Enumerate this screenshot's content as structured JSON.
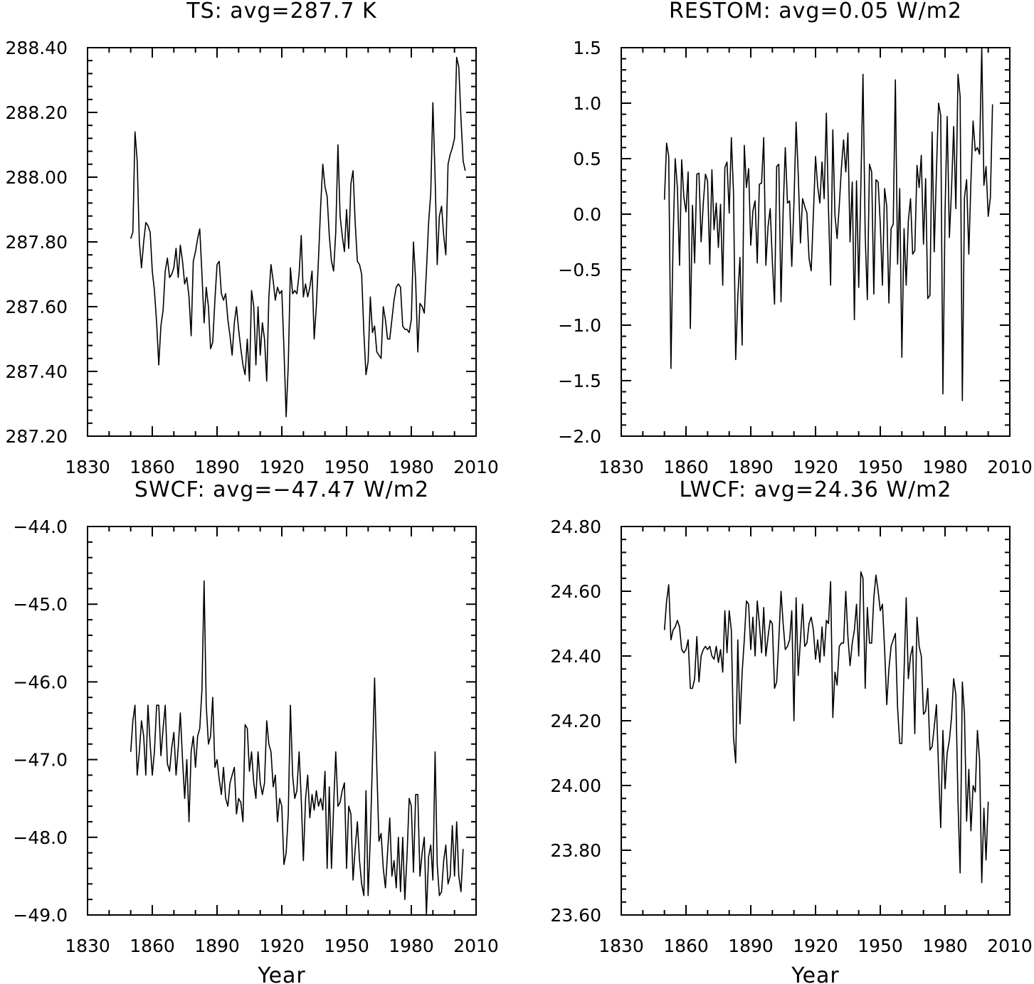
{
  "chart_data": [
    {
      "type": "line",
      "title": "TS: avg=287.7 K",
      "xlabel": "",
      "ylabel": "",
      "xlim": [
        1830,
        2010
      ],
      "ylim": [
        287.2,
        288.4
      ],
      "xticks": [
        "1830",
        "1860",
        "1890",
        "1920",
        "1950",
        "1980",
        "2010"
      ],
      "yticks": [
        "287.20",
        "287.40",
        "287.60",
        "287.80",
        "288.00",
        "288.20",
        "288.40"
      ],
      "grid": false,
      "x_start": 1850,
      "series": [
        {
          "values": [
            287.81,
            287.83,
            288.14,
            288.05,
            287.8,
            287.72,
            287.8,
            287.86,
            287.85,
            287.83,
            287.71,
            287.65,
            287.55,
            287.42,
            287.54,
            287.59,
            287.71,
            287.75,
            287.69,
            287.7,
            287.72,
            287.78,
            287.69,
            287.79,
            287.74,
            287.67,
            287.69,
            287.63,
            287.51,
            287.74,
            287.77,
            287.81,
            287.84,
            287.7,
            287.55,
            287.66,
            287.6,
            287.47,
            287.49,
            287.62,
            287.73,
            287.74,
            287.64,
            287.62,
            287.64,
            287.56,
            287.51,
            287.45,
            287.55,
            287.6,
            287.53,
            287.47,
            287.42,
            287.39,
            287.5,
            287.37,
            287.65,
            287.6,
            287.42,
            287.6,
            287.45,
            287.55,
            287.5,
            287.37,
            287.63,
            287.73,
            287.68,
            287.62,
            287.66,
            287.64,
            287.65,
            287.47,
            287.26,
            287.42,
            287.72,
            287.64,
            287.65,
            287.64,
            287.7,
            287.82,
            287.63,
            287.67,
            287.63,
            287.66,
            287.71,
            287.5,
            287.6,
            287.75,
            287.91,
            288.04,
            287.97,
            287.94,
            287.82,
            287.74,
            287.71,
            287.83,
            288.1,
            287.88,
            287.82,
            287.77,
            287.9,
            287.78,
            287.98,
            288.02,
            287.86,
            287.74,
            287.73,
            287.7,
            287.52,
            287.39,
            287.43,
            287.63,
            287.52,
            287.54,
            287.46,
            287.45,
            287.44,
            287.6,
            287.56,
            287.5,
            287.5,
            287.56,
            287.62,
            287.66,
            287.67,
            287.66,
            287.54,
            287.53,
            287.53,
            287.52,
            287.56,
            287.8,
            287.68,
            287.46,
            287.61,
            287.6,
            287.58,
            287.71,
            287.86,
            287.95,
            288.23,
            288.0,
            287.73,
            287.88,
            287.91,
            287.82,
            287.76,
            288.04,
            288.07,
            288.09,
            288.12,
            288.37,
            288.34,
            288.18,
            288.05,
            288.02
          ]
        }
      ]
    },
    {
      "type": "line",
      "title": "RESTOM: avg=0.05 W/m2",
      "xlabel": "",
      "ylabel": "",
      "xlim": [
        1830,
        2010
      ],
      "ylim": [
        -2.0,
        1.5
      ],
      "xticks": [
        "1830",
        "1860",
        "1890",
        "1920",
        "1950",
        "1980",
        "2010"
      ],
      "yticks": [
        "−2.0",
        "−1.5",
        "−1.0",
        "−0.5",
        "0.0",
        "0.5",
        "1.0",
        "1.5"
      ],
      "grid": false,
      "x_start": 1850,
      "series": [
        {
          "values": [
            0.13,
            0.64,
            0.52,
            -1.39,
            -0.25,
            0.5,
            0.24,
            -0.46,
            0.49,
            0.15,
            0.02,
            0.38,
            -1.03,
            0.08,
            -0.44,
            0.36,
            0.37,
            -0.25,
            0.1,
            0.36,
            0.3,
            -0.45,
            0.4,
            -0.14,
            0.1,
            -0.3,
            0.09,
            -0.64,
            0.42,
            0.47,
            0.01,
            0.69,
            0.2,
            -1.31,
            -0.74,
            -0.39,
            -1.18,
            0.62,
            0.24,
            0.41,
            -0.28,
            0.03,
            0.12,
            -0.44,
            0.27,
            0.28,
            0.69,
            -0.46,
            -0.11,
            0.05,
            -0.42,
            -0.81,
            0.43,
            0.45,
            -0.79,
            0.03,
            0.6,
            0.1,
            0.12,
            -0.47,
            0.1,
            0.83,
            0.36,
            -0.26,
            0.14,
            0.07,
            0.01,
            -0.4,
            -0.51,
            0.0,
            0.52,
            0.25,
            0.1,
            0.47,
            0.14,
            0.91,
            0.05,
            -0.64,
            0.76,
            -0.01,
            -0.22,
            0.08,
            0.42,
            0.67,
            0.38,
            0.73,
            -0.25,
            0.29,
            -0.95,
            0.3,
            -0.66,
            0.25,
            1.26,
            -0.19,
            -0.77,
            0.45,
            0.38,
            -0.72,
            0.31,
            0.29,
            -0.09,
            -0.64,
            0.23,
            0.07,
            -0.8,
            -0.13,
            -0.09,
            1.21,
            -0.45,
            0.23,
            -1.29,
            -0.13,
            -0.64,
            -0.06,
            0.14,
            -0.36,
            -0.33,
            0.44,
            0.24,
            0.53,
            -0.27,
            0.32,
            -0.76,
            -0.73,
            0.74,
            -0.34,
            0.39,
            1.0,
            0.89,
            -1.62,
            0.02,
            0.88,
            -0.21,
            0.22,
            0.79,
            0.05,
            1.26,
            1.06,
            -1.68,
            0.15,
            0.31,
            -0.36,
            0.3,
            0.84,
            0.57,
            0.6,
            0.54,
            1.5,
            0.26,
            0.43,
            -0.02,
            0.15,
            0.99
          ]
        }
      ]
    },
    {
      "type": "line",
      "title": "SWCF: avg=−47.47 W/m2",
      "xlabel": "Year",
      "ylabel": "",
      "xlim": [
        1830,
        2010
      ],
      "ylim": [
        -49.0,
        -44.0
      ],
      "xticks": [
        "1830",
        "1860",
        "1890",
        "1920",
        "1950",
        "1980",
        "2010"
      ],
      "yticks": [
        "−49.0",
        "−48.0",
        "−47.0",
        "−46.0",
        "−45.0",
        "−44.0"
      ],
      "grid": false,
      "x_start": 1850,
      "series": [
        {
          "values": [
            -46.9,
            -46.5,
            -46.3,
            -47.2,
            -46.9,
            -46.5,
            -46.7,
            -47.2,
            -46.3,
            -46.8,
            -47.2,
            -46.9,
            -46.3,
            -46.3,
            -46.95,
            -46.6,
            -46.3,
            -47.05,
            -47.15,
            -46.85,
            -46.65,
            -47.2,
            -46.85,
            -46.4,
            -47.0,
            -47.5,
            -47.0,
            -47.8,
            -46.9,
            -46.7,
            -47.1,
            -46.7,
            -46.6,
            -46.1,
            -44.7,
            -46.3,
            -46.8,
            -46.7,
            -46.2,
            -47.1,
            -47.0,
            -47.25,
            -47.45,
            -47.1,
            -47.5,
            -47.6,
            -47.3,
            -47.2,
            -47.1,
            -47.7,
            -47.5,
            -47.55,
            -47.8,
            -46.55,
            -46.6,
            -47.15,
            -46.9,
            -47.3,
            -47.5,
            -46.9,
            -47.3,
            -47.45,
            -47.3,
            -46.5,
            -46.8,
            -46.9,
            -47.35,
            -47.2,
            -47.8,
            -47.5,
            -47.6,
            -48.35,
            -48.2,
            -47.7,
            -46.3,
            -47.2,
            -47.5,
            -47.4,
            -46.9,
            -47.5,
            -48.3,
            -47.5,
            -47.2,
            -47.75,
            -47.45,
            -47.65,
            -47.4,
            -47.6,
            -47.5,
            -47.65,
            -47.15,
            -48.4,
            -47.35,
            -48.4,
            -47.6,
            -46.9,
            -47.6,
            -47.55,
            -47.4,
            -47.3,
            -48.4,
            -47.6,
            -47.7,
            -48.55,
            -48.15,
            -47.8,
            -48.3,
            -48.6,
            -48.75,
            -47.4,
            -48.75,
            -48.0,
            -47.0,
            -45.95,
            -47.1,
            -48.05,
            -47.95,
            -48.4,
            -48.65,
            -48.2,
            -47.75,
            -48.5,
            -48.3,
            -48.65,
            -48.0,
            -48.7,
            -48.0,
            -48.8,
            -48.25,
            -47.5,
            -47.6,
            -48.45,
            -47.45,
            -47.45,
            -48.5,
            -48.2,
            -48.0,
            -49.0,
            -48.25,
            -48.1,
            -48.55,
            -46.9,
            -48.35,
            -48.75,
            -48.7,
            -48.3,
            -48.1,
            -48.6,
            -48.5,
            -47.85,
            -48.5,
            -47.8,
            -48.5,
            -48.7,
            -48.15
          ]
        }
      ]
    },
    {
      "type": "line",
      "title": "LWCF: avg=24.36 W/m2",
      "xlabel": "Year",
      "ylabel": "",
      "xlim": [
        1830,
        2010
      ],
      "ylim": [
        23.6,
        24.8
      ],
      "xticks": [
        "1830",
        "1860",
        "1890",
        "1920",
        "1950",
        "1980",
        "2010"
      ],
      "yticks": [
        "23.60",
        "23.80",
        "24.00",
        "24.20",
        "24.40",
        "24.60",
        "24.80"
      ],
      "grid": false,
      "x_start": 1850,
      "series": [
        {
          "values": [
            24.48,
            24.57,
            24.62,
            24.45,
            24.48,
            24.49,
            24.51,
            24.49,
            24.42,
            24.41,
            24.42,
            24.45,
            24.3,
            24.3,
            24.33,
            24.46,
            24.32,
            24.4,
            24.42,
            24.43,
            24.42,
            24.43,
            24.4,
            24.39,
            24.43,
            24.38,
            24.42,
            24.35,
            24.54,
            24.41,
            24.54,
            24.48,
            24.15,
            24.07,
            24.45,
            24.19,
            24.35,
            24.45,
            24.57,
            24.56,
            24.42,
            24.52,
            24.4,
            24.57,
            24.5,
            24.41,
            24.55,
            24.4,
            24.46,
            24.51,
            24.5,
            24.3,
            24.32,
            24.45,
            24.6,
            24.5,
            24.42,
            24.43,
            24.45,
            24.54,
            24.2,
            24.58,
            24.34,
            24.45,
            24.56,
            24.43,
            24.44,
            24.5,
            24.52,
            24.48,
            24.39,
            24.45,
            24.38,
            24.49,
            24.4,
            24.51,
            24.5,
            24.63,
            24.21,
            24.35,
            24.31,
            24.43,
            24.44,
            24.44,
            24.6,
            24.46,
            24.37,
            24.44,
            24.48,
            24.56,
            24.4,
            24.66,
            24.64,
            24.3,
            24.55,
            24.44,
            24.44,
            24.58,
            24.65,
            24.6,
            24.54,
            24.56,
            24.42,
            24.25,
            24.36,
            24.43,
            24.45,
            24.47,
            24.24,
            24.13,
            24.13,
            24.35,
            24.58,
            24.33,
            24.4,
            24.43,
            24.16,
            24.52,
            24.43,
            24.4,
            24.22,
            24.23,
            24.3,
            24.11,
            24.12,
            24.18,
            24.25,
            24.05,
            23.87,
            24.17,
            23.99,
            24.1,
            24.14,
            24.21,
            24.33,
            24.28,
            23.95,
            23.73,
            24.32,
            24.22,
            23.89,
            24.05,
            23.86,
            24.0,
            23.98,
            24.17,
            24.08,
            23.7,
            23.93,
            23.77,
            23.95
          ]
        }
      ]
    }
  ]
}
